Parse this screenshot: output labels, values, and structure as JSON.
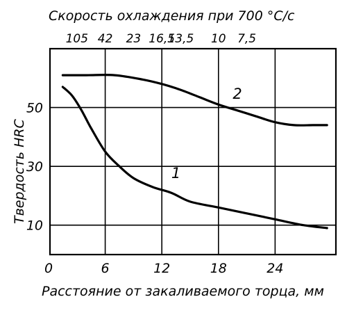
{
  "chart_data": {
    "type": "line",
    "title": "Скорость охлаждения при 700 °С/с",
    "xlabel": "Расстояние от закаливаемого торца, мм",
    "ylabel": "Твердость HRC",
    "xlim": [
      0,
      30
    ],
    "ylim": [
      0,
      70
    ],
    "x_ticks": [
      0,
      6,
      12,
      18,
      24
    ],
    "y_ticks": [
      10,
      30,
      50
    ],
    "top_axis": {
      "ticks": [
        {
          "x": 3,
          "label": "105"
        },
        {
          "x": 6,
          "label": "42"
        },
        {
          "x": 9,
          "label": "23"
        },
        {
          "x": 12,
          "label": "16,5"
        },
        {
          "x": 14,
          "label": "13,5"
        },
        {
          "x": 18,
          "label": "10"
        },
        {
          "x": 21,
          "label": "7,5"
        }
      ]
    },
    "grid": true,
    "series": [
      {
        "name": "1",
        "label_at": {
          "x": 13.5,
          "y": 26
        },
        "points": [
          [
            1.5,
            57
          ],
          [
            2.5,
            54
          ],
          [
            3.5,
            49
          ],
          [
            4.5,
            43
          ],
          [
            6,
            35
          ],
          [
            7.5,
            30
          ],
          [
            9,
            26
          ],
          [
            11,
            23
          ],
          [
            13,
            21
          ],
          [
            15,
            18
          ],
          [
            18,
            16
          ],
          [
            21,
            14
          ],
          [
            24,
            12
          ],
          [
            27,
            10
          ],
          [
            29.5,
            9
          ]
        ]
      },
      {
        "name": "2",
        "label_at": {
          "x": 20,
          "y": 53
        },
        "points": [
          [
            1.5,
            61
          ],
          [
            4,
            61
          ],
          [
            7,
            61
          ],
          [
            10,
            59.5
          ],
          [
            12,
            58
          ],
          [
            14,
            56
          ],
          [
            16,
            53.5
          ],
          [
            18,
            51
          ],
          [
            20,
            49
          ],
          [
            22,
            47
          ],
          [
            24,
            45
          ],
          [
            26,
            44
          ],
          [
            28,
            44
          ],
          [
            29.5,
            44
          ]
        ]
      }
    ]
  }
}
